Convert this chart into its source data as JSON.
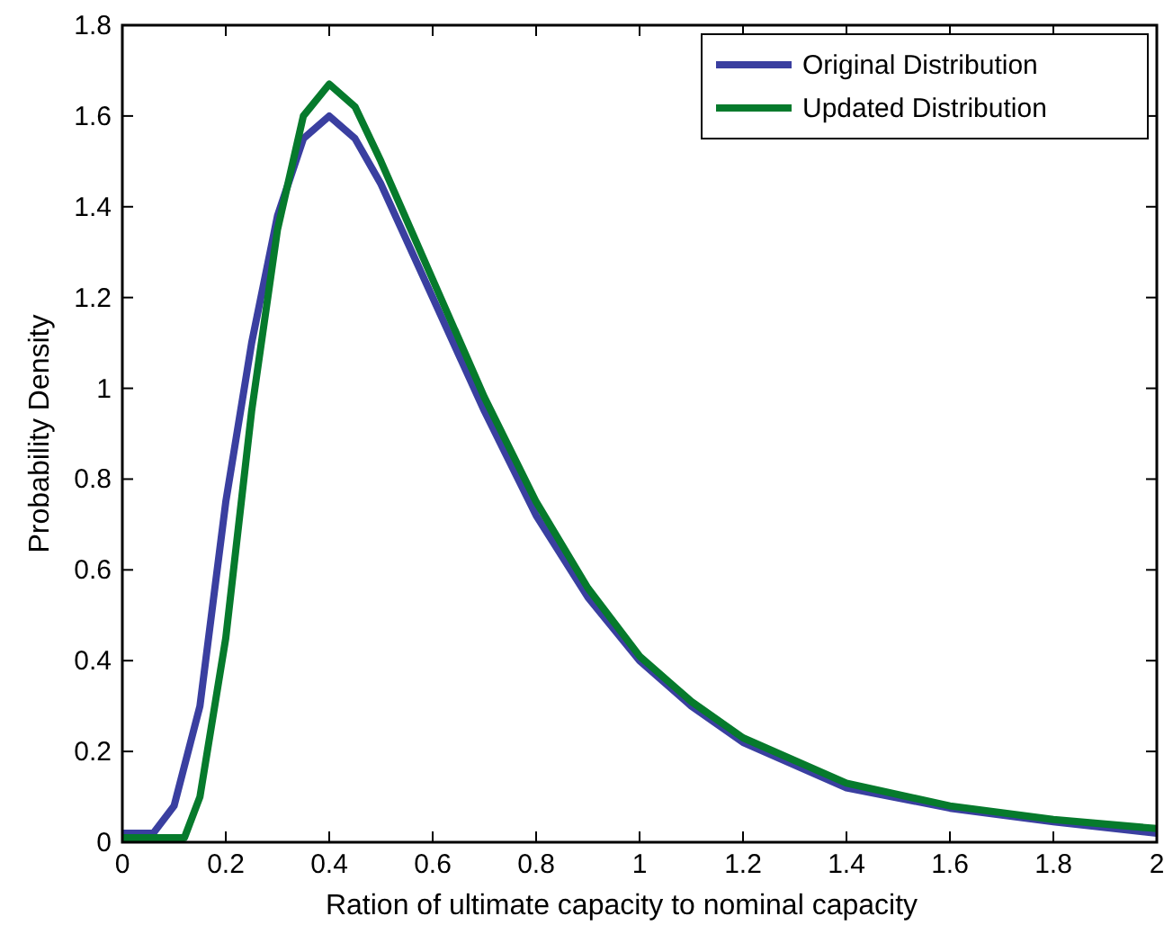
{
  "chart_data": {
    "type": "line",
    "xlabel": "Ration of ultimate capacity to nominal capacity",
    "ylabel": "Probability Density",
    "xlim": [
      0,
      2
    ],
    "ylim": [
      0,
      1.8
    ],
    "xticks": [
      0,
      0.2,
      0.4,
      0.6,
      0.8,
      1,
      1.2,
      1.4,
      1.6,
      1.8,
      2
    ],
    "yticks": [
      0,
      0.2,
      0.4,
      0.6,
      0.8,
      1,
      1.2,
      1.4,
      1.6,
      1.8
    ],
    "grid": false,
    "legend": "top right",
    "line_style": "solid",
    "marker": "none",
    "series": [
      {
        "name": "Original Distribution",
        "color": "#3a3fa0",
        "x": [
          0,
          0.06,
          0.1,
          0.15,
          0.2,
          0.25,
          0.3,
          0.35,
          0.4,
          0.45,
          0.5,
          0.6,
          0.7,
          0.8,
          0.9,
          1,
          1.1,
          1.2,
          1.4,
          1.6,
          1.8,
          2
        ],
        "values": [
          0.02,
          0.02,
          0.08,
          0.3,
          0.75,
          1.1,
          1.38,
          1.55,
          1.6,
          1.55,
          1.45,
          1.2,
          0.95,
          0.72,
          0.54,
          0.4,
          0.3,
          0.22,
          0.12,
          0.075,
          0.045,
          0.02
        ]
      },
      {
        "name": "Updated Distribution",
        "color": "#067a2c",
        "x": [
          0,
          0.12,
          0.15,
          0.2,
          0.25,
          0.3,
          0.35,
          0.4,
          0.45,
          0.5,
          0.6,
          0.7,
          0.8,
          0.9,
          1,
          1.1,
          1.2,
          1.4,
          1.6,
          1.8,
          2
        ],
        "values": [
          0.01,
          0.01,
          0.1,
          0.45,
          0.95,
          1.35,
          1.6,
          1.67,
          1.62,
          1.5,
          1.24,
          0.98,
          0.75,
          0.56,
          0.41,
          0.31,
          0.23,
          0.13,
          0.08,
          0.05,
          0.03
        ]
      }
    ]
  }
}
